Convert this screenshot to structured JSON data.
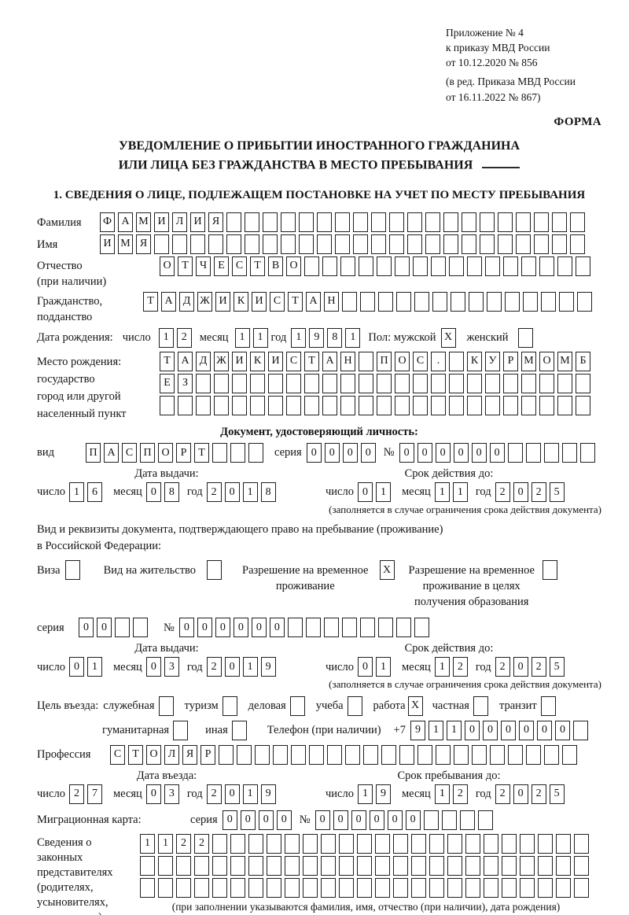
{
  "meta": {
    "appendix_lines": [
      "Приложение № 4",
      "к приказу МВД России",
      "от 10.12.2020 № 856"
    ],
    "amendment_lines": [
      "(в ред. Приказа МВД России",
      "от 16.11.2022 № 867)"
    ],
    "forma": "ФОРМА"
  },
  "title": {
    "line1": "УВЕДОМЛЕНИЕ О ПРИБЫТИИ ИНОСТРАННОГО ГРАЖДАНИНА",
    "line2": "ИЛИ ЛИЦА БЕЗ ГРАЖДАНСТВА В МЕСТО ПРЕБЫВАНИЯ"
  },
  "section1": {
    "heading": "1. СВЕДЕНИЯ О ЛИЦЕ, ПОДЛЕЖАЩЕМ ПОСТАНОВКЕ НА УЧЕТ ПО МЕСТУ ПРЕБЫВАНИЯ"
  },
  "surname": {
    "label": "Фамилия",
    "cells": 27,
    "value": "ФАМИЛИЯ"
  },
  "first_name": {
    "label": "Имя",
    "cells": 27,
    "value": "ИМЯ"
  },
  "patronymic": {
    "label_line1": "Отчество",
    "label_line2": "(при наличии)",
    "cells": 24,
    "value": "ОТЧЕСТВО"
  },
  "citizenship": {
    "label_line1": "Гражданство,",
    "label_line2": "подданство",
    "cells": 25,
    "value": "ТАДЖИКИСТАН"
  },
  "birth_date": {
    "label": "Дата рождения:",
    "day_label": "число",
    "day": {
      "cells": 2,
      "value": "12"
    },
    "month_label": "месяц",
    "month": {
      "cells": 2,
      "value": "11"
    },
    "year_label": "год",
    "year": {
      "cells": 4,
      "value": "1981"
    },
    "sex_label": "Пол: мужской",
    "male_box": {
      "cells": 1,
      "value": "X"
    },
    "female_label": "женский",
    "female_box": {
      "cells": 1,
      "value": ""
    }
  },
  "birth_place": {
    "label_lines": [
      "Место рождения:",
      "государство",
      "город или другой",
      "населенный пункт"
    ],
    "row1": {
      "cells": 24,
      "value": "ТАДЖИКИСТАН ПОС. КУРМОМБ"
    },
    "row2": {
      "cells": 24,
      "value": "ЕЗ"
    },
    "row3": {
      "cells": 24,
      "value": ""
    }
  },
  "identity_doc": {
    "heading": "Документ, удостоверяющий личность:",
    "kind_label": "вид",
    "kind": {
      "cells": 10,
      "value": "ПАСПОРТ"
    },
    "series_label": "серия",
    "series": {
      "cells": 4,
      "value": "0000"
    },
    "number_label": "№",
    "number": {
      "cells": 11,
      "value": "000000"
    },
    "issue": {
      "title": "Дата выдачи:",
      "day_label": "число",
      "day": {
        "cells": 2,
        "value": "16"
      },
      "month_label": "месяц",
      "month": {
        "cells": 2,
        "value": "08"
      },
      "year_label": "год",
      "year": {
        "cells": 4,
        "value": "2018"
      }
    },
    "expiry": {
      "title": "Срок действия до:",
      "day_label": "число",
      "day": {
        "cells": 2,
        "value": "01"
      },
      "month_label": "месяц",
      "month": {
        "cells": 2,
        "value": "11"
      },
      "year_label": "год",
      "year": {
        "cells": 4,
        "value": "2025"
      }
    },
    "expiry_note": "(заполняется в случае ограничения срока действия документа)"
  },
  "residence_doc": {
    "intro_line1": "Вид и реквизиты документа, подтверждающего право на пребывание (проживание)",
    "intro_line2": "в Российской Федерации:",
    "visa_label": "Виза",
    "visa_box": {
      "cells": 1,
      "value": ""
    },
    "residence_permit_label": "Вид на жительство",
    "residence_permit_box": {
      "cells": 1,
      "value": ""
    },
    "temp_permit_line1": "Разрешение на временное",
    "temp_permit_line2": "проживание",
    "temp_permit_box": {
      "cells": 1,
      "value": "X"
    },
    "edu_permit_line1": "Разрешение на временное",
    "edu_permit_line2": "проживание в целях",
    "edu_permit_line3": "получения образования",
    "edu_permit_box": {
      "cells": 1,
      "value": ""
    },
    "series_label": "серия",
    "series": {
      "cells": 4,
      "value": "00"
    },
    "number_label": "№",
    "number": {
      "cells": 14,
      "value": "000000"
    },
    "issue": {
      "title": "Дата выдачи:",
      "day_label": "число",
      "day": {
        "cells": 2,
        "value": "01"
      },
      "month_label": "месяц",
      "month": {
        "cells": 2,
        "value": "03"
      },
      "year_label": "год",
      "year": {
        "cells": 4,
        "value": "2019"
      }
    },
    "expiry": {
      "title": "Срок действия до:",
      "day_label": "число",
      "day": {
        "cells": 2,
        "value": "01"
      },
      "month_label": "месяц",
      "month": {
        "cells": 2,
        "value": "12"
      },
      "year_label": "год",
      "year": {
        "cells": 4,
        "value": "2025"
      }
    },
    "expiry_note": "(заполняется в случае ограничения срока действия документа)"
  },
  "purpose": {
    "label": "Цель въезда:",
    "row1": [
      {
        "label": "служебная",
        "box": {
          "cells": 1,
          "value": ""
        }
      },
      {
        "label": "туризм",
        "box": {
          "cells": 1,
          "value": ""
        }
      },
      {
        "label": "деловая",
        "box": {
          "cells": 1,
          "value": ""
        }
      },
      {
        "label": "учеба",
        "box": {
          "cells": 1,
          "value": ""
        }
      },
      {
        "label": "работа",
        "box": {
          "cells": 1,
          "value": "X"
        }
      },
      {
        "label": "частная",
        "box": {
          "cells": 1,
          "value": ""
        }
      },
      {
        "label": "транзит",
        "box": {
          "cells": 1,
          "value": ""
        }
      }
    ],
    "row2": [
      {
        "label": "гуманитарная",
        "box": {
          "cells": 1,
          "value": ""
        }
      },
      {
        "label": "иная",
        "box": {
          "cells": 1,
          "value": ""
        }
      }
    ],
    "phone_label": "Телефон (при наличии)",
    "phone_prefix": "+7",
    "phone": {
      "cells": 10,
      "value": "911000000"
    }
  },
  "profession": {
    "label": "Профессия",
    "cells": 26,
    "value": "СТОЛЯР"
  },
  "entry_dates": {
    "issue": {
      "title": "Дата въезда:",
      "day_label": "число",
      "day": {
        "cells": 2,
        "value": "27"
      },
      "month_label": "месяц",
      "month": {
        "cells": 2,
        "value": "03"
      },
      "year_label": "год",
      "year": {
        "cells": 4,
        "value": "2019"
      }
    },
    "expiry": {
      "title": "Срок пребывания до:",
      "day_label": "число",
      "day": {
        "cells": 2,
        "value": "19"
      },
      "month_label": "месяц",
      "month": {
        "cells": 2,
        "value": "12"
      },
      "year_label": "год",
      "year": {
        "cells": 4,
        "value": "2025"
      }
    }
  },
  "migration_card": {
    "label": "Миграционная карта:",
    "series_label": "серия",
    "series": {
      "cells": 4,
      "value": "0000"
    },
    "number_label": "№",
    "number": {
      "cells": 10,
      "value": "000000"
    }
  },
  "representatives": {
    "label_lines": [
      "Сведения о",
      "законных",
      "представителях",
      "(родителях,",
      "усыновителях,",
      "попечителях)"
    ],
    "row1": {
      "cells": 25,
      "value": "1122"
    },
    "row2": {
      "cells": 25,
      "value": ""
    },
    "row3": {
      "cells": 25,
      "value": ""
    },
    "note": "(при заполнении указываются фамилия, имя, отчество (при наличии), дата рождения)"
  }
}
